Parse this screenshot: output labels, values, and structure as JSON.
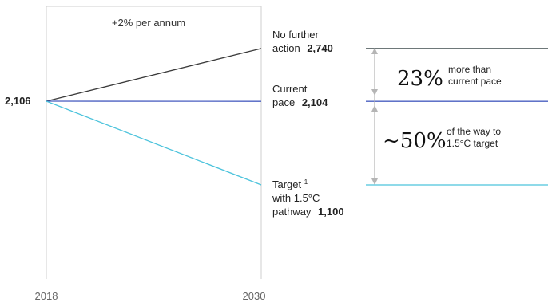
{
  "chart_data": {
    "type": "line",
    "x": [
      2018,
      2030
    ],
    "x_tick_labels": [
      "2018",
      "2030"
    ],
    "start_label": "2,106",
    "annotation": "+2% per annum",
    "series": [
      {
        "label_lines": [
          "No further",
          "action"
        ],
        "label_value": "2,740",
        "values": [
          2106,
          2740
        ]
      },
      {
        "label_lines": [
          "Current",
          "pace"
        ],
        "label_value": "2,104",
        "values": [
          2106,
          2104
        ]
      },
      {
        "label_lines": [
          "Target",
          "with 1.5°C",
          "pathway"
        ],
        "label_sup": "1",
        "label_value": "1,100",
        "values": [
          2106,
          1100
        ]
      }
    ],
    "comparison": [
      {
        "value": "23%",
        "text_lines": [
          "more than",
          "current pace"
        ]
      },
      {
        "value": "~50%",
        "text_lines": [
          "of the way to",
          "1.5°C target"
        ]
      }
    ],
    "colors": {
      "no_further_action": "#3a3a3a",
      "current_pace": "#4a5fc1",
      "target": "#4cc3dc",
      "frame": "#cfcfcf",
      "arrow": "#b5b5b5"
    }
  }
}
